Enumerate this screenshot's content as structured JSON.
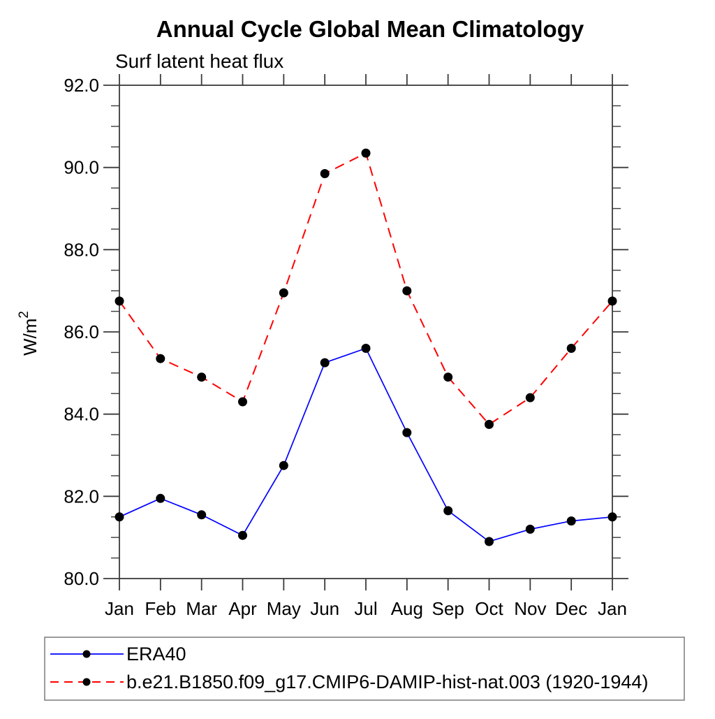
{
  "chart_data": {
    "type": "line",
    "title": "Annual Cycle Global Mean Climatology",
    "subtitle": "Surf latent heat flux",
    "ylabel_base": "W/m",
    "ylabel_sup": "2",
    "x_categories": [
      "Jan",
      "Feb",
      "Mar",
      "Apr",
      "May",
      "Jun",
      "Jul",
      "Aug",
      "Sep",
      "Oct",
      "Nov",
      "Dec",
      "Jan"
    ],
    "ylim": [
      80.0,
      92.0
    ],
    "ytick_step": 2.0,
    "ytick_minor_step": 0.5,
    "ytick_labels": [
      "80.0",
      "82.0",
      "84.0",
      "86.0",
      "88.0",
      "90.0",
      "92.0"
    ],
    "grid": false,
    "legend_position": "bottom-left-box",
    "series": [
      {
        "name": "ERA40",
        "line_color": "#0000ff",
        "line_style": "solid",
        "marker": "filled-circle",
        "marker_color": "#000000",
        "values": [
          81.5,
          81.95,
          81.55,
          81.05,
          82.75,
          85.25,
          85.6,
          83.55,
          81.65,
          80.9,
          81.2,
          81.4,
          81.5
        ]
      },
      {
        "name": "b.e21.B1850.f09_g17.CMIP6-DAMIP-hist-nat.003 (1920-1944)",
        "line_color": "#ff0000",
        "line_style": "dashed",
        "marker": "filled-circle",
        "marker_color": "#000000",
        "values": [
          86.75,
          85.35,
          84.9,
          84.3,
          86.95,
          89.85,
          90.35,
          87.0,
          84.9,
          83.75,
          84.4,
          85.6,
          86.75
        ]
      }
    ]
  }
}
